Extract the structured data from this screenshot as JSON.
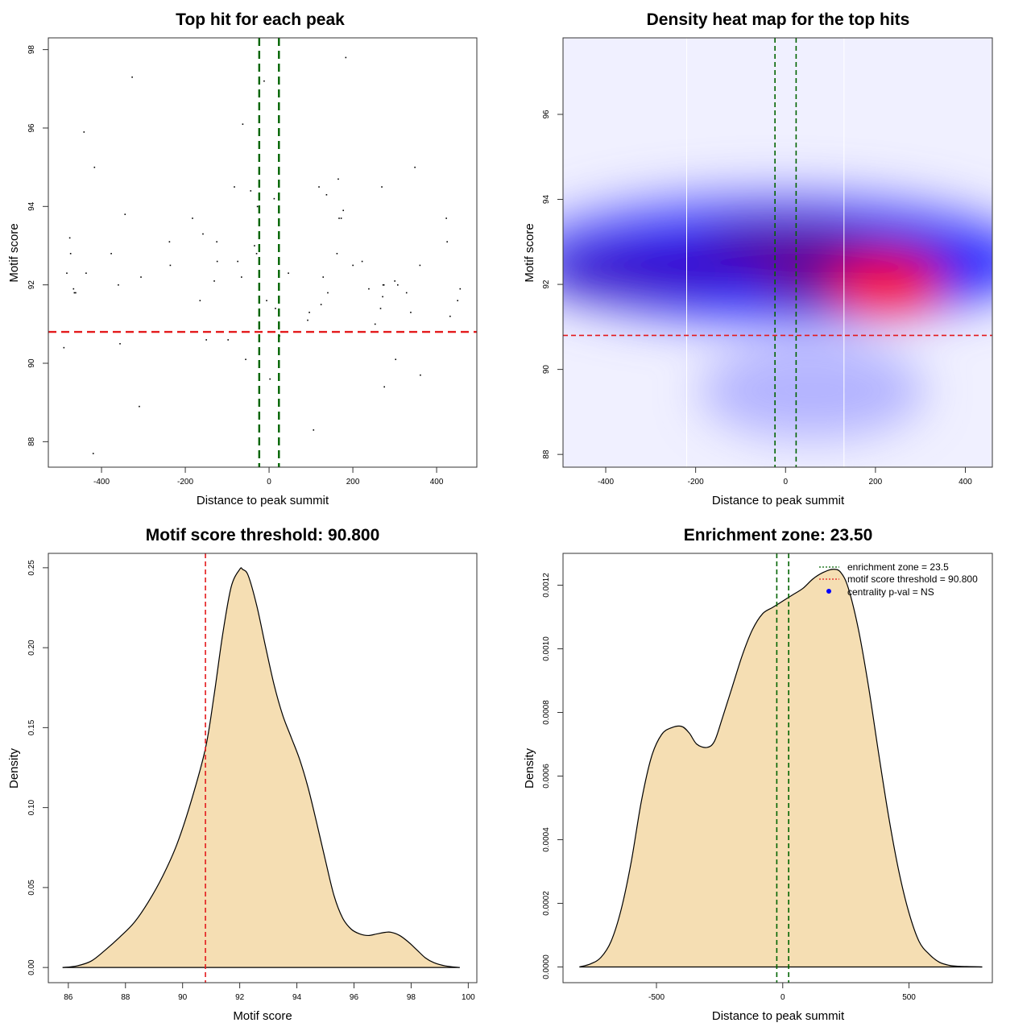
{
  "chart_data": [
    {
      "id": "scatter",
      "type": "scatter",
      "title": "Top hit for each peak",
      "xlabel": "Distance to peak summit",
      "ylabel": "Motif score",
      "xlim": [
        -527,
        496
      ],
      "ylim": [
        87.35,
        98.3
      ],
      "xticks": [
        -400,
        -200,
        0,
        200,
        400
      ],
      "yticks": [
        88,
        90,
        92,
        94,
        96,
        98
      ],
      "vlines": {
        "values": [
          -23.5,
          23.5
        ],
        "color": "#006400",
        "style": "dashed"
      },
      "hlines": {
        "values": [
          90.8
        ],
        "color": "#e41a1c",
        "style": "dashed"
      },
      "points": [
        [
          -490,
          90.4
        ],
        [
          -483,
          92.3
        ],
        [
          -476,
          93.2
        ],
        [
          -474,
          92.8
        ],
        [
          -467,
          91.9
        ],
        [
          -465,
          91.8
        ],
        [
          -462,
          91.8
        ],
        [
          -442,
          95.9
        ],
        [
          -437,
          92.3
        ],
        [
          -420,
          87.7
        ],
        [
          -417,
          95.0
        ],
        [
          -377,
          92.8
        ],
        [
          -360,
          92.0
        ],
        [
          -356,
          90.5
        ],
        [
          -344,
          93.8
        ],
        [
          -327,
          97.3
        ],
        [
          -310,
          88.9
        ],
        [
          -306,
          92.2
        ],
        [
          -238,
          93.1
        ],
        [
          -236,
          92.5
        ],
        [
          -183,
          93.7
        ],
        [
          -165,
          91.6
        ],
        [
          -158,
          93.3
        ],
        [
          -150,
          90.6
        ],
        [
          -131,
          92.1
        ],
        [
          -125,
          93.1
        ],
        [
          -124,
          92.6
        ],
        [
          -98,
          90.6
        ],
        [
          -83,
          94.5
        ],
        [
          -75,
          92.6
        ],
        [
          -66,
          92.2
        ],
        [
          -63,
          96.1
        ],
        [
          -56,
          90.1
        ],
        [
          -44,
          94.4
        ],
        [
          -35,
          93.0
        ],
        [
          -30,
          92.8
        ],
        [
          -28,
          94.0
        ],
        [
          -12,
          97.2
        ],
        [
          -6,
          91.6
        ],
        [
          2,
          89.6
        ],
        [
          12,
          94.2
        ],
        [
          15,
          91.4
        ],
        [
          25,
          90.7
        ],
        [
          46,
          92.3
        ],
        [
          92,
          91.1
        ],
        [
          96,
          91.3
        ],
        [
          106,
          88.3
        ],
        [
          119,
          94.5
        ],
        [
          124,
          91.5
        ],
        [
          129,
          92.2
        ],
        [
          137,
          94.3
        ],
        [
          140,
          91.8
        ],
        [
          162,
          92.8
        ],
        [
          165,
          94.7
        ],
        [
          167,
          93.7
        ],
        [
          172,
          93.7
        ],
        [
          177,
          93.9
        ],
        [
          183,
          97.8
        ],
        [
          200,
          92.5
        ],
        [
          222,
          92.6
        ],
        [
          238,
          91.9
        ],
        [
          253,
          91.0
        ],
        [
          266,
          91.4
        ],
        [
          269,
          94.5
        ],
        [
          271,
          91.7
        ],
        [
          272,
          92.0
        ],
        [
          274,
          92.0
        ],
        [
          275,
          89.4
        ],
        [
          300,
          92.1
        ],
        [
          302,
          90.1
        ],
        [
          307,
          92.0
        ],
        [
          328,
          91.8
        ],
        [
          338,
          91.3
        ],
        [
          348,
          95.0
        ],
        [
          360,
          92.5
        ],
        [
          361,
          89.7
        ],
        [
          423,
          93.7
        ],
        [
          425,
          93.1
        ],
        [
          432,
          91.2
        ],
        [
          450,
          91.6
        ],
        [
          456,
          91.9
        ]
      ]
    },
    {
      "id": "heatmap",
      "type": "heatmap",
      "title": "Density heat map for the top hits",
      "xlabel": "Distance to peak summit",
      "ylabel": "Motif score",
      "xlim": [
        -495,
        460
      ],
      "ylim": [
        87.7,
        97.8
      ],
      "xticks": [
        -400,
        -200,
        0,
        200,
        400
      ],
      "yticks": [
        88,
        90,
        92,
        94,
        96
      ],
      "colorscale": [
        "#ffffff",
        "#0000ff",
        "#ff0000"
      ],
      "white_vlines": [
        -220,
        130
      ],
      "vlines": {
        "values": [
          -23.5,
          23.5
        ],
        "color": "#006400",
        "style": "dashed"
      },
      "hlines": {
        "values": [
          90.8
        ],
        "color": "#e41a1c",
        "style": "dashed"
      },
      "density_peaks": [
        {
          "x": 230,
          "y": 91.9,
          "level": 1.0
        },
        {
          "x": 0,
          "y": 92.6,
          "level": 0.55
        },
        {
          "x": -320,
          "y": 92.3,
          "level": 0.5
        }
      ]
    },
    {
      "id": "score-density",
      "type": "area",
      "title": "Motif score threshold: 90.800",
      "xlabel": "Motif score",
      "ylabel": "Density",
      "xlim": [
        85.3,
        100.3
      ],
      "ylim": [
        -0.0095,
        0.259
      ],
      "xticks": [
        86,
        88,
        90,
        92,
        94,
        96,
        98,
        100
      ],
      "yticks": [
        0.0,
        0.05,
        0.1,
        0.15,
        0.2,
        0.25
      ],
      "ytick_labels": [
        "0.00",
        "0.05",
        "0.10",
        "0.15",
        "0.20",
        "0.25"
      ],
      "fill": "#f5deb3",
      "vlines": {
        "values": [
          90.8
        ],
        "color": "#e41a1c",
        "style": "dashed"
      },
      "x": [
        85.8,
        86.3,
        86.8,
        87.3,
        87.8,
        88.3,
        88.8,
        89.3,
        89.8,
        90.3,
        90.8,
        91.1,
        91.4,
        91.7,
        92.0,
        92.1,
        92.3,
        92.6,
        92.9,
        93.2,
        93.5,
        93.8,
        94.1,
        94.4,
        94.7,
        95.0,
        95.3,
        95.6,
        95.9,
        96.2,
        96.5,
        96.8,
        97.1,
        97.3,
        97.6,
        97.9,
        98.2,
        98.5,
        98.8,
        99.2,
        99.7
      ],
      "y": [
        0.0,
        0.001,
        0.004,
        0.011,
        0.019,
        0.028,
        0.041,
        0.057,
        0.077,
        0.104,
        0.137,
        0.17,
        0.208,
        0.238,
        0.249,
        0.249,
        0.245,
        0.226,
        0.201,
        0.177,
        0.158,
        0.144,
        0.13,
        0.112,
        0.09,
        0.067,
        0.045,
        0.031,
        0.024,
        0.021,
        0.02,
        0.021,
        0.022,
        0.022,
        0.02,
        0.016,
        0.011,
        0.006,
        0.003,
        0.001,
        0.0
      ]
    },
    {
      "id": "distance-density",
      "type": "area",
      "title": "Enrichment zone: 23.50",
      "xlabel": "Distance to peak summit",
      "ylabel": "Density",
      "xlim": [
        -870,
        830
      ],
      "ylim": [
        -4.94e-05,
        0.0013
      ],
      "xticks": [
        -500,
        0,
        500
      ],
      "yticks": [
        0.0,
        0.0002,
        0.0004,
        0.0006,
        0.0008,
        0.001,
        0.0012
      ],
      "ytick_labels": [
        "0.0000",
        "0.0002",
        "0.0004",
        "0.0006",
        "0.0008",
        "0.0010",
        "0.0012"
      ],
      "fill": "#f5deb3",
      "vlines": {
        "values": [
          -23.5,
          23.5
        ],
        "color": "#006400",
        "style": "dashed"
      },
      "x": [
        -805,
        -760,
        -720,
        -680,
        -640,
        -600,
        -560,
        -520,
        -480,
        -440,
        -400,
        -370,
        -340,
        -300,
        -270,
        -240,
        -200,
        -160,
        -120,
        -80,
        -40,
        0,
        40,
        80,
        120,
        160,
        200,
        230,
        260,
        300,
        340,
        380,
        420,
        460,
        500,
        540,
        580,
        620,
        660,
        700,
        740,
        790
      ],
      "y": [
        0.0,
        1e-05,
        3e-05,
        8e-05,
        0.00018,
        0.00033,
        0.00052,
        0.00066,
        0.00073,
        0.000752,
        0.000756,
        0.000735,
        0.0007,
        0.00069,
        0.00071,
        0.00078,
        0.00088,
        0.00098,
        0.00106,
        0.00111,
        0.00113,
        0.00115,
        0.00117,
        0.00119,
        0.00122,
        0.00124,
        0.00125,
        0.00124,
        0.00119,
        0.00106,
        0.00088,
        0.00067,
        0.00047,
        0.0003,
        0.00017,
        8e-05,
        4e-05,
        1.5e-05,
        5e-06,
        2e-06,
        1e-06,
        0.0
      ]
    }
  ],
  "legend": {
    "placement": "top-right",
    "items": [
      {
        "label": "enrichment zone = 23.5",
        "symbol": "dotted-line",
        "color": "#006400"
      },
      {
        "label": "motif score threshold = 90.800",
        "symbol": "dotted-line",
        "color": "#e41a1c"
      },
      {
        "label": "centrality p-val = NS",
        "symbol": "dot",
        "color": "#0000ff"
      }
    ]
  }
}
